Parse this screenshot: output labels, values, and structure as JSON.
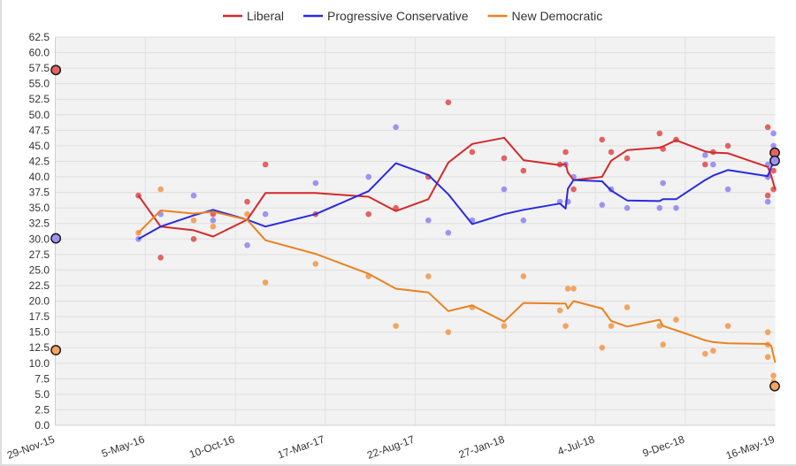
{
  "chart_data": {
    "type": "line",
    "title": "",
    "xlabel": "",
    "ylabel": "",
    "xlim": [
      "2015-11-29",
      "2019-05-16"
    ],
    "ylim": [
      0,
      62.5
    ],
    "y_ticks": [
      "0.0",
      "2.5",
      "5.0",
      "7.5",
      "10.0",
      "12.5",
      "15.0",
      "17.5",
      "20.0",
      "22.5",
      "25.0",
      "27.5",
      "30.0",
      "32.5",
      "35.0",
      "37.5",
      "40.0",
      "42.5",
      "45.0",
      "47.5",
      "50.0",
      "52.5",
      "55.0",
      "57.5",
      "60.0",
      "62.5"
    ],
    "x_ticks": [
      "29-Nov-15",
      "5-May-16",
      "10-Oct-16",
      "17-Mar-17",
      "22-Aug-17",
      "27-Jan-18",
      "4-Jul-18",
      "9-Dec-18",
      "16-May-19"
    ],
    "grid": true,
    "legend_position": "top",
    "series": [
      {
        "key": "lib",
        "name": "Liberal",
        "color": "#d42a2a",
        "dot_color": "#e26363"
      },
      {
        "key": "pc",
        "name": "Progressive Conservative",
        "color": "#2a2ae0",
        "dot_color": "#9c94f2"
      },
      {
        "key": "ndp",
        "name": "New Democratic",
        "color": "#ea8220",
        "dot_color": "#f2a462"
      }
    ],
    "trend": {
      "dates": [
        "2016-04-23",
        "2016-06-01",
        "2016-07-29",
        "2016-09-01",
        "2016-10-31",
        "2016-12-02",
        "2017-02-28",
        "2017-06-01",
        "2017-07-19",
        "2017-09-14",
        "2017-10-19",
        "2017-11-30",
        "2018-01-25",
        "2018-02-28",
        "2018-05-03",
        "2018-05-13",
        "2018-05-17",
        "2018-05-27",
        "2018-07-16",
        "2018-08-01",
        "2018-08-29",
        "2018-10-25",
        "2018-10-31",
        "2018-11-23",
        "2019-01-13",
        "2019-01-27",
        "2019-02-22",
        "2019-05-03",
        "2019-05-09",
        "2019-05-16"
      ],
      "lib": [
        37.0,
        32.0,
        31.4,
        30.4,
        33.1,
        37.4,
        37.4,
        36.8,
        34.5,
        36.4,
        42.3,
        45.3,
        46.3,
        42.7,
        41.9,
        42.1,
        40.7,
        39.5,
        40.0,
        42.6,
        44.3,
        44.7,
        44.9,
        45.9,
        44.1,
        43.9,
        43.8,
        41.6,
        40.2,
        38.0
      ],
      "pc": [
        30.0,
        32.0,
        33.8,
        34.7,
        33.1,
        32.0,
        34.0,
        37.7,
        42.2,
        40.3,
        37.2,
        32.4,
        34.0,
        34.7,
        35.7,
        34.9,
        38.1,
        39.5,
        39.3,
        37.8,
        36.2,
        36.1,
        36.4,
        36.4,
        39.5,
        40.2,
        41.1,
        40.1,
        41.6,
        42.6
      ],
      "ndp": [
        31.0,
        34.6,
        34.1,
        34.4,
        33.1,
        29.8,
        27.6,
        24.4,
        22.0,
        21.4,
        18.4,
        19.3,
        16.7,
        19.7,
        19.6,
        19.6,
        18.8,
        20.0,
        18.8,
        16.8,
        15.9,
        17.0,
        16.0,
        15.3,
        13.7,
        13.4,
        13.2,
        13.1,
        12.8,
        10.1
      ]
    },
    "polls": [
      {
        "date": "2016-04-23",
        "lib": 37,
        "pc": 30,
        "ndp": 31
      },
      {
        "date": "2016-06-01",
        "lib": 27,
        "pc": 34,
        "ndp": 38
      },
      {
        "date": "2016-07-29",
        "lib": 30,
        "pc": 37,
        "ndp": 33
      },
      {
        "date": "2016-09-01",
        "lib": 34,
        "pc": 33,
        "ndp": 32
      },
      {
        "date": "2016-10-31",
        "lib": 36,
        "pc": 29,
        "ndp": 34
      },
      {
        "date": "2016-12-02",
        "lib": 42,
        "pc": 34,
        "ndp": 23
      },
      {
        "date": "2017-02-28",
        "lib": 34,
        "pc": 39,
        "ndp": 26
      },
      {
        "date": "2017-06-01",
        "lib": 34,
        "pc": 40,
        "ndp": 24
      },
      {
        "date": "2017-07-19",
        "lib": 35,
        "pc": 48,
        "ndp": 16
      },
      {
        "date": "2017-09-14",
        "lib": 40,
        "pc": 33,
        "ndp": 24
      },
      {
        "date": "2017-10-19",
        "lib": 52,
        "pc": 31,
        "ndp": 15
      },
      {
        "date": "2017-11-30",
        "lib": 44,
        "pc": 33,
        "ndp": 19
      },
      {
        "date": "2018-01-25",
        "lib": 43,
        "pc": 38,
        "ndp": 16
      },
      {
        "date": "2018-02-28",
        "lib": 41,
        "pc": 33,
        "ndp": 24
      },
      {
        "date": "2018-05-03",
        "lib": 42,
        "pc": 36,
        "ndp": 18.5
      },
      {
        "date": "2018-05-13",
        "lib": 44,
        "pc": 42,
        "ndp": 16
      },
      {
        "date": "2018-05-17",
        "lib": 36,
        "pc": 36,
        "ndp": 22
      },
      {
        "date": "2018-05-27",
        "lib": 38,
        "pc": 40,
        "ndp": 22
      },
      {
        "date": "2018-07-16",
        "lib": 46,
        "pc": 35.5,
        "ndp": 12.5
      },
      {
        "date": "2018-08-01",
        "lib": 44,
        "pc": 38,
        "ndp": 16
      },
      {
        "date": "2018-08-29",
        "lib": 43,
        "pc": 35,
        "ndp": 19
      },
      {
        "date": "2018-10-25",
        "lib": 47,
        "pc": 35,
        "ndp": 16
      },
      {
        "date": "2018-10-31",
        "lib": 44.5,
        "pc": 39,
        "ndp": 13
      },
      {
        "date": "2018-11-23",
        "lib": 46,
        "pc": 35,
        "ndp": 17
      },
      {
        "date": "2019-01-13",
        "lib": 42,
        "pc": 43.5,
        "ndp": 11.5
      },
      {
        "date": "2019-01-27",
        "lib": 44,
        "pc": 42,
        "ndp": 12
      },
      {
        "date": "2019-02-22",
        "lib": 45,
        "pc": 38,
        "ndp": 16
      },
      {
        "date": "2019-05-03",
        "lib": 48,
        "pc": 42,
        "ndp": 15
      },
      {
        "date": "2019-05-03",
        "lib": 40,
        "pc": 40,
        "ndp": 13
      },
      {
        "date": "2019-05-03",
        "lib": 37,
        "pc": 36,
        "ndp": 11
      },
      {
        "date": "2019-05-13",
        "lib": 41,
        "pc": 47,
        "ndp": 8
      },
      {
        "date": "2019-05-13",
        "lib": 38,
        "pc": 45,
        "ndp": 7
      }
    ],
    "elections": [
      {
        "date": "2015-11-30",
        "lib": 57.2,
        "pc": 30.1,
        "ndp": 12.1
      },
      {
        "date": "2019-05-16",
        "lib": 43.9,
        "pc": 42.6,
        "ndp": 6.3
      }
    ]
  }
}
